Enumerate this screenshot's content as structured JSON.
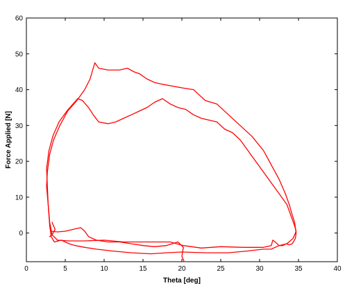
{
  "chart_data": {
    "type": "line",
    "title": "",
    "xlabel": "Theta [deg]",
    "ylabel": "Force Applied [N]",
    "xlim": [
      0,
      40
    ],
    "ylim": [
      -8,
      60
    ],
    "xticks": [
      0,
      5,
      10,
      15,
      20,
      25,
      30,
      35,
      40
    ],
    "yticks": [
      0,
      10,
      20,
      30,
      40,
      50,
      60
    ],
    "grid": false,
    "legend": "none",
    "series": [
      {
        "color": "#ff0000",
        "x": [
          2.7,
          3.0,
          3.5,
          4.3,
          5.3,
          6.5,
          7.5,
          8.2,
          8.6,
          8.8,
          9.3,
          10.5,
          12.0,
          13.0,
          13.8,
          14.5,
          15.5,
          16.5,
          17.5,
          18.8,
          20.0,
          21.5,
          22.0,
          23.0,
          24.5,
          26.0,
          27.5,
          29.0,
          30.5,
          31.5,
          32.5,
          33.3,
          33.8,
          34.2,
          34.5,
          34.7,
          34.6,
          34.2,
          33.8,
          33.4,
          33.0,
          32.5,
          32.0,
          31.7,
          31.5,
          30.5,
          28.0,
          25.0,
          22.5,
          20.2,
          18.5,
          16.0,
          14.0,
          12.5,
          10.0,
          7.5,
          5.5,
          4.0,
          3.3,
          3.0,
          2.8,
          2.6,
          2.7
        ],
        "y": [
          17,
          22,
          26,
          30,
          34,
          37,
          40,
          43,
          46,
          47.5,
          46,
          45.5,
          45.5,
          46,
          45,
          44.5,
          43,
          42,
          41.5,
          41,
          40.5,
          40,
          39,
          37,
          36,
          33,
          30,
          27,
          23,
          19,
          15,
          11,
          8,
          5,
          3,
          0,
          -1.5,
          -3,
          -3.3,
          -3,
          -3.5,
          -3.5,
          -2.5,
          -2,
          -3.5,
          -4,
          -4,
          -3.8,
          -4.2,
          -3.5,
          -2.5,
          -2.5,
          -2.5,
          -2.5,
          -2,
          -2.2,
          -2.2,
          -2,
          -0.5,
          3,
          8,
          13,
          17
        ]
      },
      {
        "color": "#ff0000",
        "x": [
          2.6,
          2.9,
          3.4,
          4.2,
          5.2,
          6.0,
          6.6,
          7.2,
          8.0,
          8.6,
          9.3,
          10.5,
          11.5,
          12.5,
          13.5,
          14.5,
          15.5,
          16.5,
          17.5,
          18.5,
          19.5,
          20.5,
          21.5,
          22.5,
          23.5,
          24.5,
          25.5,
          26.5,
          27.5,
          28.5,
          29.5,
          30.5,
          31.5,
          32.5,
          33.5,
          34.0,
          34.5,
          34.7,
          34.3,
          33.5,
          32.5,
          31.5,
          30.5,
          28.5,
          26.0,
          23.0,
          20.0,
          18.0,
          16.0,
          13.5,
          11.0,
          9.0,
          7.5,
          6.3,
          5.5,
          4.5,
          3.6,
          3.2,
          3.0,
          2.8,
          2.6
        ],
        "y": [
          18,
          23,
          27,
          31,
          34,
          36,
          37.5,
          37,
          35,
          33,
          31,
          30.5,
          31,
          32,
          33,
          34,
          35,
          36.5,
          37.5,
          36,
          35,
          34.5,
          33,
          32,
          31.5,
          31,
          29,
          28,
          26,
          23,
          20,
          17,
          14,
          11,
          8,
          5,
          2,
          0.5,
          -1.5,
          -3,
          -3.5,
          -4.5,
          -4.5,
          -5,
          -5.5,
          -5.5,
          -5.3,
          -5.5,
          -5.8,
          -5.5,
          -5,
          -4.5,
          -4,
          -3.5,
          -3,
          -2,
          -2.5,
          -1,
          2,
          8,
          18
        ]
      },
      {
        "color": "#ff0000",
        "x": [
          3.2,
          4.0,
          5.0,
          6.0,
          7.0,
          7.5,
          8.0,
          9.0,
          10.5,
          12.0,
          13.5,
          15.0,
          16.5,
          18.0,
          19.5,
          20.2,
          20.0,
          20.3
        ],
        "y": [
          0.5,
          0.3,
          0.5,
          1.0,
          1.5,
          0.5,
          -1.0,
          -2.0,
          -2.5,
          -2.5,
          -3.0,
          -3.5,
          -3.8,
          -3.5,
          -2.5,
          -4.0,
          -6.5,
          -8.0
        ]
      },
      {
        "color": "#ff0000",
        "x": [
          3.3,
          3.7,
          3.3,
          3.0
        ],
        "y": [
          3,
          1,
          -0.5,
          -1
        ]
      }
    ]
  }
}
